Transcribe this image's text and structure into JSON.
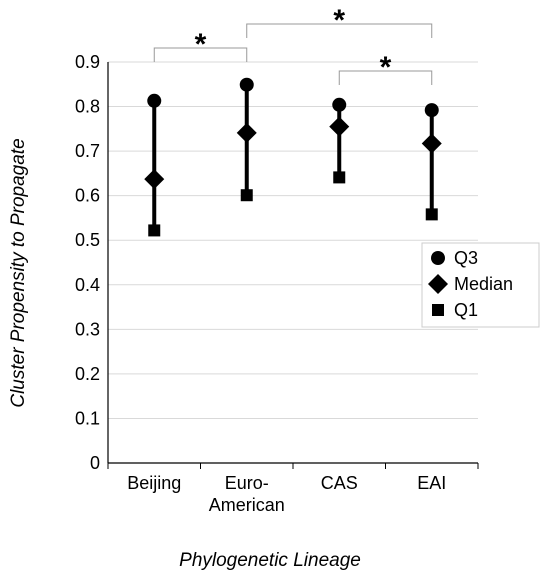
{
  "chart_data": {
    "type": "scatter",
    "xlabel": "Phylogenetic Lineage",
    "ylabel": "Cluster Propensity to Propagate",
    "ylim": [
      0,
      0.9
    ],
    "y_ticks": [
      "0",
      "0.1",
      "0.2",
      "0.3",
      "0.4",
      "0.5",
      "0.6",
      "0.7",
      "0.8",
      "0.9"
    ],
    "grid": true,
    "legend_position": "right",
    "categories": [
      {
        "lines": [
          "Beijing"
        ]
      },
      {
        "lines": [
          "Euro-",
          "American"
        ]
      },
      {
        "lines": [
          "CAS"
        ]
      },
      {
        "lines": [
          "EAI"
        ]
      }
    ],
    "series": [
      {
        "name": "Q3",
        "marker": "circle",
        "values": [
          0.813,
          0.849,
          0.804,
          0.792
        ]
      },
      {
        "name": "Median",
        "marker": "diamond",
        "values": [
          0.637,
          0.741,
          0.755,
          0.717
        ]
      },
      {
        "name": "Q1",
        "marker": "square",
        "values": [
          0.522,
          0.601,
          0.641,
          0.558
        ]
      }
    ],
    "significance": [
      {
        "from": 0,
        "to": 1,
        "label": "*"
      },
      {
        "from": 1,
        "to": 3,
        "label": "*"
      },
      {
        "from": 2,
        "to": 3,
        "label": "*"
      }
    ]
  }
}
